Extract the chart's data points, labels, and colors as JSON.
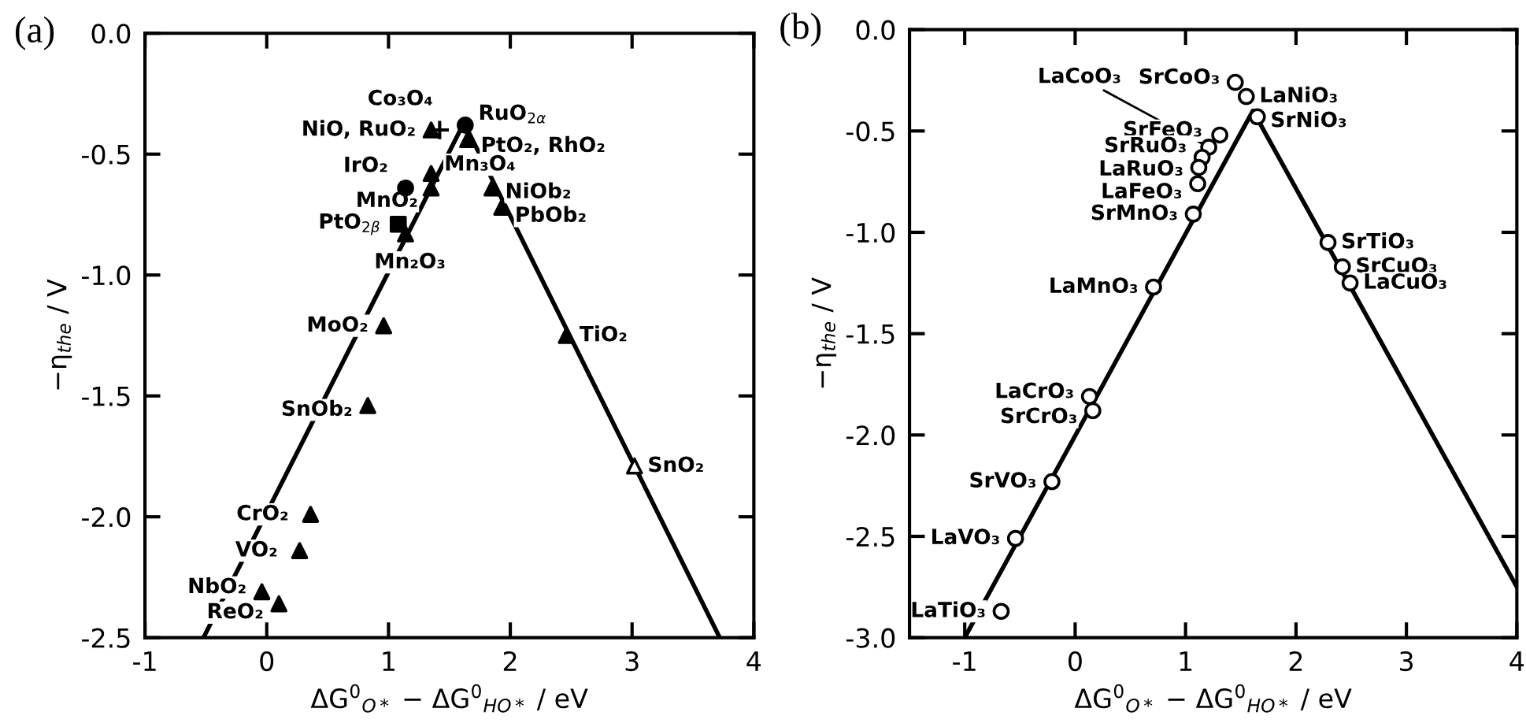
{
  "chart_data": [
    {
      "type": "scatter",
      "title": "(a)",
      "xlabel": "ΔG$^{0}$$_{O*}$ − ΔG$^{0}$$_{HO*}$ / eV",
      "ylabel": "−η$_{the}$ / V",
      "xlim": [
        -1,
        4
      ],
      "xticks": [
        -1,
        0,
        1,
        2,
        3,
        4
      ],
      "ylim": [
        -2.5,
        0
      ],
      "yticks": [
        {
          "value": -2.5,
          "label": "-2.5"
        },
        {
          "value": -2.0,
          "label": "-2.0"
        },
        {
          "value": -1.5,
          "label": "-1.5"
        },
        {
          "value": -1.0,
          "label": "-1.0"
        },
        {
          "value": -0.5,
          "label": "-0.5"
        },
        {
          "value": 0,
          "label": "0.0"
        }
      ],
      "grid": false,
      "legend": false,
      "series": [
        {
          "type": "line",
          "color": "#000000",
          "line_style": "solid",
          "marker": "none",
          "x": [
            -0.52,
            1.62,
            3.72
          ],
          "values": [
            -2.5,
            -0.37,
            -2.5
          ]
        },
        {
          "color": "#000000",
          "marker": "triangle",
          "x": [
            1.35,
            1.65,
            1.35,
            1.35,
            1.14,
            1.85,
            1.93,
            0.96,
            2.46,
            0.83,
            0.36,
            0.27,
            -0.04,
            0.1
          ],
          "values": [
            -0.4,
            -0.44,
            -0.58,
            -0.64,
            -0.83,
            -0.64,
            -0.72,
            -1.21,
            -1.25,
            -1.54,
            -1.99,
            -2.14,
            -2.31,
            -2.36
          ]
        },
        {
          "color": "#000000",
          "marker": "circle",
          "x": [
            1.63,
            1.14
          ],
          "values": [
            -0.38,
            -0.64
          ]
        },
        {
          "color": "#000000",
          "marker": "square",
          "x": [
            1.08
          ],
          "values": [
            -0.79
          ]
        },
        {
          "color": "#000000",
          "marker": "cross",
          "x": [
            1.42
          ],
          "values": [
            -0.4
          ]
        },
        {
          "color": "#ffffff",
          "marker": "triangle",
          "x": [
            3.02
          ],
          "values": [
            -1.79
          ]
        }
      ],
      "annotations": [
        {
          "text": "Co₃O₄",
          "x": 1.42,
          "y": -0.4
        },
        {
          "text": "NiO, RuO₂",
          "x": 1.35,
          "y": -0.4
        },
        {
          "text": "RuO$_{2α}$",
          "x": 1.63,
          "y": -0.38
        },
        {
          "text": "PtO₂, RhO₂",
          "x": 1.65,
          "y": -0.44
        },
        {
          "text": "Mn₃O₄",
          "x": 1.35,
          "y": -0.58
        },
        {
          "text": "IrO₂",
          "x": 1.14,
          "y": -0.64
        },
        {
          "text": "MnO₂",
          "x": 1.35,
          "y": -0.64
        },
        {
          "text": "PtO$_{2β}$",
          "x": 1.08,
          "y": -0.79
        },
        {
          "text": "Mn₂O₃",
          "x": 1.14,
          "y": -0.83
        },
        {
          "text": "NiOb₂",
          "x": 1.85,
          "y": -0.64
        },
        {
          "text": "PbOb₂",
          "x": 1.93,
          "y": -0.72
        },
        {
          "text": "MoO₂",
          "x": 0.96,
          "y": -1.21
        },
        {
          "text": "TiO₂",
          "x": 2.46,
          "y": -1.25
        },
        {
          "text": "SnOb₂",
          "x": 0.83,
          "y": -1.54
        },
        {
          "text": "SnO₂",
          "x": 3.02,
          "y": -1.79
        },
        {
          "text": "CrO₂",
          "x": 0.36,
          "y": -1.99
        },
        {
          "text": "VO₂",
          "x": 0.27,
          "y": -2.14
        },
        {
          "text": "NbO₂",
          "x": -0.04,
          "y": -2.31
        },
        {
          "text": "ReO₂",
          "x": 0.1,
          "y": -2.36
        }
      ]
    },
    {
      "type": "scatter",
      "title": "(b)",
      "xlabel": "ΔG$^{0}$$_{O*}$ − ΔG$^{0}$$_{HO*}$ / eV",
      "ylabel": "−η$_{the}$ / V",
      "xlim": [
        -1.5,
        4
      ],
      "xticks": [
        -1,
        0,
        1,
        2,
        3,
        4
      ],
      "ylim": [
        -3.0,
        0
      ],
      "yticks": [
        {
          "value": -3.0,
          "label": "-3.0"
        },
        {
          "value": -2.5,
          "label": "-2.5"
        },
        {
          "value": -2.0,
          "label": "-2.0"
        },
        {
          "value": -1.5,
          "label": "-1.5"
        },
        {
          "value": -1.0,
          "label": "-1.0"
        },
        {
          "value": -0.5,
          "label": "-0.5"
        },
        {
          "value": 0,
          "label": "0.0"
        }
      ],
      "grid": false,
      "legend": false,
      "series": [
        {
          "type": "line",
          "color": "#000000",
          "line_style": "solid",
          "marker": "none",
          "x": [
            -1.0,
            1.61,
            4.0
          ],
          "values": [
            -3.0,
            -0.4,
            -2.75
          ]
        },
        {
          "color": "#ffffff",
          "marker": "circle",
          "x": [
            1.45,
            1.55,
            1.65,
            1.21,
            1.31,
            1.15,
            1.12,
            1.11,
            1.07,
            0.71,
            2.29,
            2.42,
            2.49,
            0.13,
            0.16,
            -0.21,
            -0.54,
            -0.67
          ],
          "values": [
            -0.26,
            -0.33,
            -0.43,
            -0.58,
            -0.52,
            -0.63,
            -0.68,
            -0.76,
            -0.91,
            -1.27,
            -1.05,
            -1.17,
            -1.25,
            -1.81,
            -1.88,
            -2.23,
            -2.51,
            -2.87
          ]
        }
      ],
      "annotations": [
        {
          "text": "SrCoO₃",
          "x": 1.45,
          "y": -0.26
        },
        {
          "text": "LaNiO₃",
          "x": 1.55,
          "y": -0.33
        },
        {
          "text": "SrNiO₃",
          "x": 1.65,
          "y": -0.43
        },
        {
          "text": "LaCoO₃",
          "x": 1.21,
          "y": -0.58
        },
        {
          "text": "SrFeO₃",
          "x": 1.31,
          "y": -0.52
        },
        {
          "text": "SrRuO₃",
          "x": 1.15,
          "y": -0.63
        },
        {
          "text": "LaRuO₃",
          "x": 1.12,
          "y": -0.68
        },
        {
          "text": "LaFeO₃",
          "x": 1.11,
          "y": -0.76
        },
        {
          "text": "SrMnO₃",
          "x": 1.07,
          "y": -0.91
        },
        {
          "text": "LaMnO₃",
          "x": 0.71,
          "y": -1.27
        },
        {
          "text": "SrTiO₃",
          "x": 2.29,
          "y": -1.05
        },
        {
          "text": "SrCuO₃",
          "x": 2.42,
          "y": -1.17
        },
        {
          "text": "LaCuO₃",
          "x": 2.49,
          "y": -1.25
        },
        {
          "text": "LaCrO₃",
          "x": 0.13,
          "y": -1.81
        },
        {
          "text": "SrCrO₃",
          "x": 0.16,
          "y": -1.88
        },
        {
          "text": "SrVO₃",
          "x": -0.21,
          "y": -2.23
        },
        {
          "text": "LaVO₃",
          "x": -0.54,
          "y": -2.51
        },
        {
          "text": "LaTiO₃",
          "x": -0.67,
          "y": -2.87
        }
      ]
    }
  ]
}
